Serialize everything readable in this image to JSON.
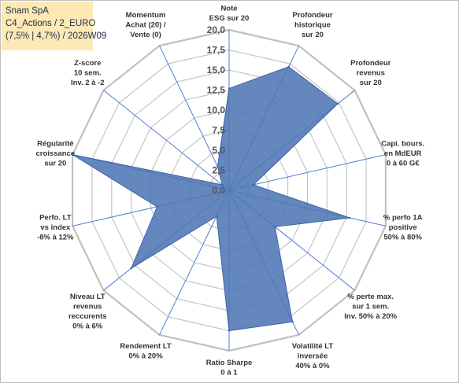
{
  "info": {
    "line1": "Snam SpA",
    "line2": "C4_Actions / 2_EURO",
    "line3": "(7,5% | 4,7%) / 2026W09"
  },
  "colors": {
    "fill": "#4f76b5",
    "stroke": "#3d64a6",
    "grid": "#c0c0c0",
    "spoke": "#4f7fd0",
    "info_bg": "#fde9b5"
  },
  "chart_data": {
    "type": "radar",
    "title": "",
    "rlim": [
      0,
      20
    ],
    "ticks": [
      "0,0",
      "2,5",
      "5,0",
      "7,5",
      "10,0",
      "12,5",
      "15,0",
      "17,5",
      "20,0"
    ],
    "grid": true,
    "categories": [
      [
        "Note",
        "ESG sur 20"
      ],
      [
        "Profondeur",
        "historique",
        "sur 20"
      ],
      [
        "Profondeur",
        "revenus",
        "sur 20"
      ],
      [
        "Capi. bours.",
        "en MdEUR",
        "0 à 60 G€"
      ],
      [
        "% perfo 1A",
        "positive",
        "50% à 80%"
      ],
      [
        "% perte max.",
        "sur 1 sem.",
        "Inv. 50% à 20%"
      ],
      [
        "Volatilité LT",
        "inversée",
        "40% à 0%"
      ],
      [
        "Ratio Sharpe",
        "0 à 1"
      ],
      [
        "Rendement LT",
        "0% à 20%"
      ],
      [
        "Niveau LT",
        "revenus",
        "reccurents",
        "0% à 6%"
      ],
      [
        "Perfo. LT",
        "vs index",
        "-8% à 12%"
      ],
      [
        "Régularité",
        "croissance",
        "sur 20"
      ],
      [
        "Z-score",
        "10 sem.",
        "Inv. 2 à -2"
      ],
      [
        "Momentum",
        "Achat (20) /",
        "Vente (0)"
      ]
    ],
    "series": [
      {
        "values": [
          12.7,
          17.1,
          17.3,
          3.1,
          15.4,
          7.3,
          18.2,
          17.5,
          3.6,
          15.6,
          9.2,
          20.0,
          1.1,
          3.3
        ]
      }
    ]
  }
}
